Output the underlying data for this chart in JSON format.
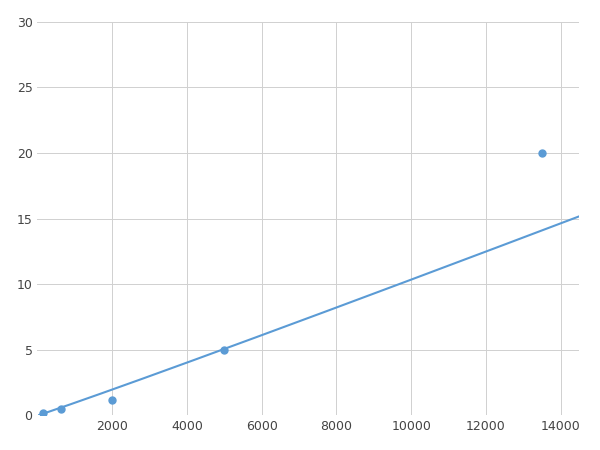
{
  "x_points": [
    156.25,
    625,
    2000,
    5000,
    13500
  ],
  "y_points": [
    0.2,
    0.5,
    1.2,
    5.0,
    20.0
  ],
  "line_color": "#5b9bd5",
  "marker_color": "#5b9bd5",
  "marker_size": 5,
  "line_width": 1.5,
  "xlim": [
    0,
    14500
  ],
  "ylim": [
    0,
    30
  ],
  "xticks": [
    2000,
    4000,
    6000,
    8000,
    10000,
    12000,
    14000
  ],
  "yticks": [
    0,
    5,
    10,
    15,
    20,
    25,
    30
  ],
  "grid_color": "#d0d0d0",
  "background_color": "#ffffff",
  "figure_bg": "#ffffff"
}
